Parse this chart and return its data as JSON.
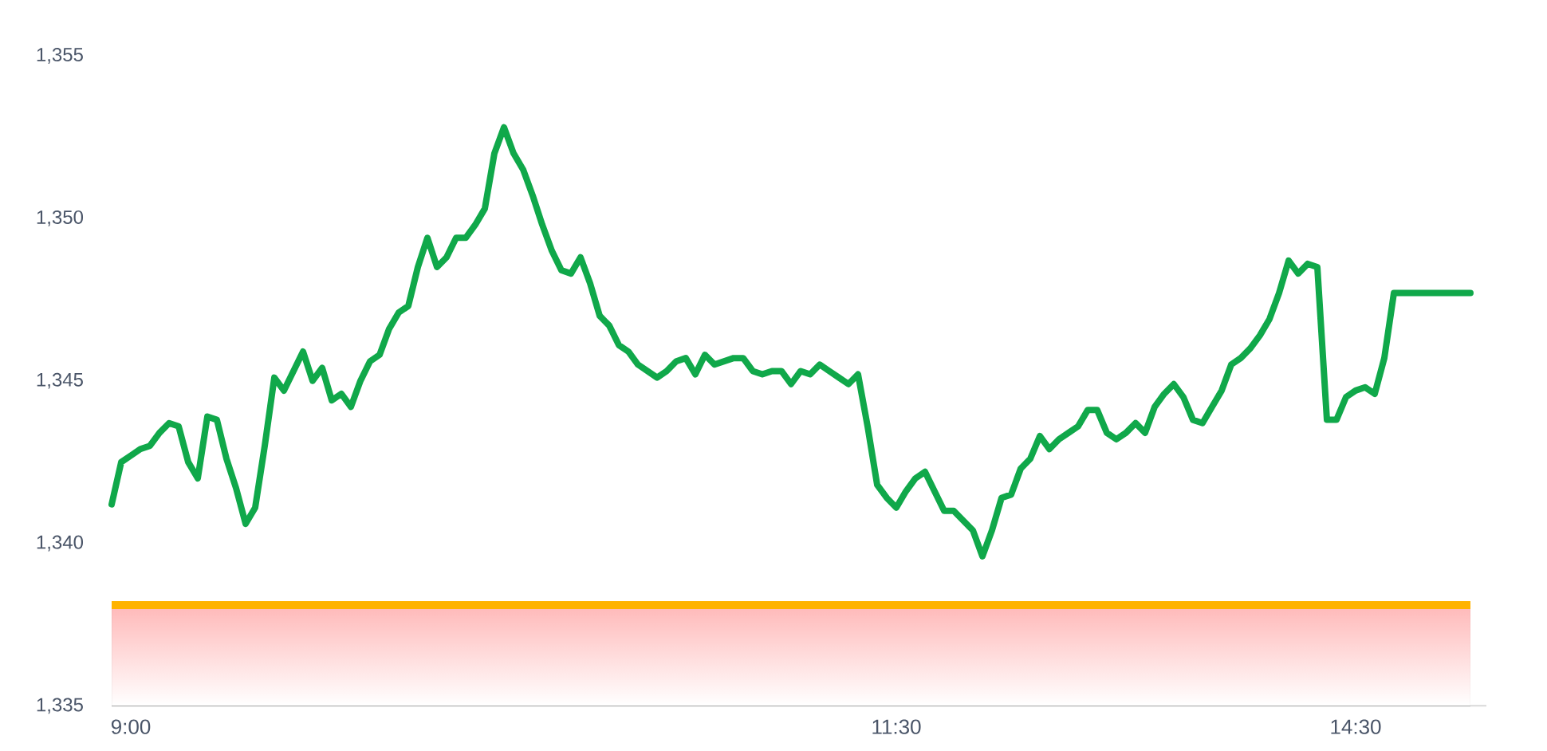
{
  "chart_data": {
    "type": "line",
    "categories": [
      null,
      null,
      "9:00",
      null,
      null,
      null,
      null,
      null,
      null,
      null,
      null,
      null,
      null,
      null,
      null,
      null,
      null,
      null,
      null,
      null,
      null,
      null,
      null,
      null,
      null,
      null,
      null,
      null,
      null,
      null,
      null,
      null,
      null,
      null,
      null,
      null,
      null,
      null,
      null,
      null,
      null,
      null,
      null,
      null,
      null,
      null,
      null,
      null,
      null,
      null,
      null,
      null,
      null,
      null,
      null,
      null,
      null,
      null,
      null,
      null,
      null,
      null,
      null,
      null,
      null,
      null,
      null,
      null,
      null,
      null,
      null,
      null,
      null,
      null,
      null,
      null,
      null,
      null,
      null,
      null,
      null,
      null,
      "11:30",
      null,
      null,
      null,
      null,
      null,
      null,
      null,
      null,
      null,
      null,
      null,
      null,
      null,
      null,
      null,
      null,
      null,
      null,
      null,
      null,
      null,
      null,
      null,
      null,
      null,
      null,
      null,
      null,
      null,
      null,
      null,
      null,
      null,
      null,
      null,
      null,
      null,
      null,
      null,
      null,
      null,
      null,
      null,
      null,
      null,
      null,
      null,
      "14:30",
      null,
      null,
      null,
      null,
      null,
      null,
      null,
      null,
      null,
      null,
      null,
      null
    ],
    "series": [
      {
        "color": "#10a84a",
        "values": [
          1341.2,
          1342.5,
          1342.7,
          1342.9,
          1343.0,
          1343.4,
          1343.7,
          1343.6,
          1342.5,
          1342.0,
          1343.9,
          1343.8,
          1342.6,
          1341.7,
          1340.6,
          1341.1,
          1343.0,
          1345.1,
          1344.7,
          1345.3,
          1345.9,
          1345.0,
          1345.4,
          1344.4,
          1344.6,
          1344.2,
          1345.0,
          1345.6,
          1345.8,
          1346.6,
          1347.1,
          1347.3,
          1348.5,
          1349.4,
          1348.5,
          1348.8,
          1349.4,
          1349.4,
          1349.8,
          1350.3,
          1352.0,
          1352.8,
          1352.0,
          1351.5,
          1350.7,
          1349.8,
          1349.0,
          1348.4,
          1348.3,
          1348.8,
          1348.0,
          1347.0,
          1346.7,
          1346.1,
          1345.9,
          1345.5,
          1345.3,
          1345.1,
          1345.3,
          1345.6,
          1345.7,
          1345.2,
          1345.8,
          1345.5,
          1345.6,
          1345.7,
          1345.7,
          1345.3,
          1345.2,
          1345.3,
          1345.3,
          1344.9,
          1345.3,
          1345.2,
          1345.5,
          1345.3,
          1345.1,
          1344.9,
          1345.2,
          1343.6,
          1341.8,
          1341.4,
          1341.1,
          1341.6,
          1342.0,
          1342.2,
          1341.6,
          1341.0,
          1341.0,
          1340.7,
          1340.4,
          1339.6,
          1340.4,
          1341.4,
          1341.5,
          1342.3,
          1342.6,
          1343.3,
          1342.9,
          1343.2,
          1343.4,
          1343.6,
          1344.1,
          1344.1,
          1343.4,
          1343.2,
          1343.4,
          1343.7,
          1343.4,
          1344.2,
          1344.6,
          1344.9,
          1344.5,
          1343.8,
          1343.7,
          1344.2,
          1344.7,
          1345.5,
          1345.7,
          1346.0,
          1346.4,
          1346.9,
          1347.7,
          1348.7,
          1348.3,
          1348.6,
          1348.5,
          1343.8,
          1343.8,
          1344.5,
          1344.7,
          1344.8,
          1344.6,
          1345.7,
          1347.7,
          1347.7,
          1347.7,
          1347.7,
          1347.7,
          1347.7,
          1347.7,
          1347.7,
          1347.7
        ]
      }
    ],
    "ylim": [
      1335,
      1355
    ],
    "yticks": [
      {
        "value": 1335,
        "label": "1,335"
      },
      {
        "value": 1340,
        "label": "1,340"
      },
      {
        "value": 1345,
        "label": "1,345"
      },
      {
        "value": 1350,
        "label": "1,350"
      },
      {
        "value": 1355,
        "label": "1,355"
      }
    ],
    "ref_lines": [
      {
        "axis": "y",
        "value": 1338.1,
        "color": "#ffb300"
      }
    ],
    "bands": [
      {
        "axis": "y",
        "from": 1335,
        "to": 1338.1,
        "color": "#ffb8b8"
      }
    ]
  }
}
